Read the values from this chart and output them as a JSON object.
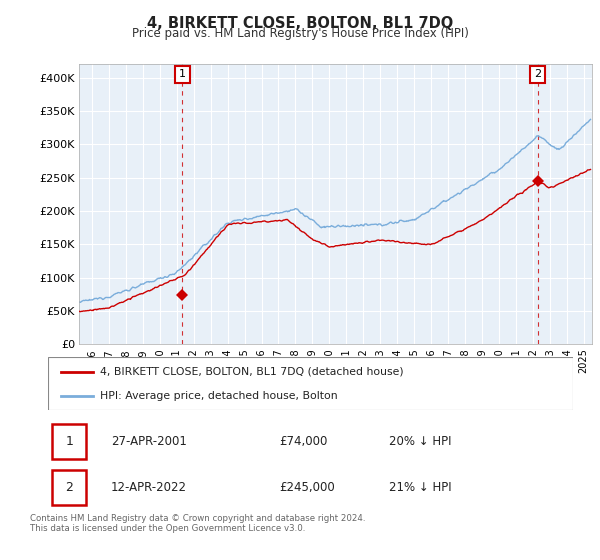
{
  "title": "4, BIRKETT CLOSE, BOLTON, BL1 7DQ",
  "subtitle": "Price paid vs. HM Land Registry's House Price Index (HPI)",
  "ylabel_ticks": [
    "£0",
    "£50K",
    "£100K",
    "£150K",
    "£200K",
    "£250K",
    "£300K",
    "£350K",
    "£400K"
  ],
  "ytick_values": [
    0,
    50000,
    100000,
    150000,
    200000,
    250000,
    300000,
    350000,
    400000
  ],
  "ylim": [
    0,
    420000
  ],
  "xlim_start": 1995.25,
  "xlim_end": 2025.5,
  "sale1_x": 2001.32,
  "sale1_y": 74000,
  "sale2_x": 2022.28,
  "sale2_y": 245000,
  "legend_label_red": "4, BIRKETT CLOSE, BOLTON, BL1 7DQ (detached house)",
  "legend_label_blue": "HPI: Average price, detached house, Bolton",
  "table_row1": [
    "1",
    "27-APR-2001",
    "£74,000",
    "20% ↓ HPI"
  ],
  "table_row2": [
    "2",
    "12-APR-2022",
    "£245,000",
    "21% ↓ HPI"
  ],
  "footer": "Contains HM Land Registry data © Crown copyright and database right 2024.\nThis data is licensed under the Open Government Licence v3.0.",
  "color_red": "#cc0000",
  "color_blue": "#7aaddb",
  "color_grid": "#cccccc",
  "bg_color": "#e8f0f8",
  "background": "#ffffff"
}
